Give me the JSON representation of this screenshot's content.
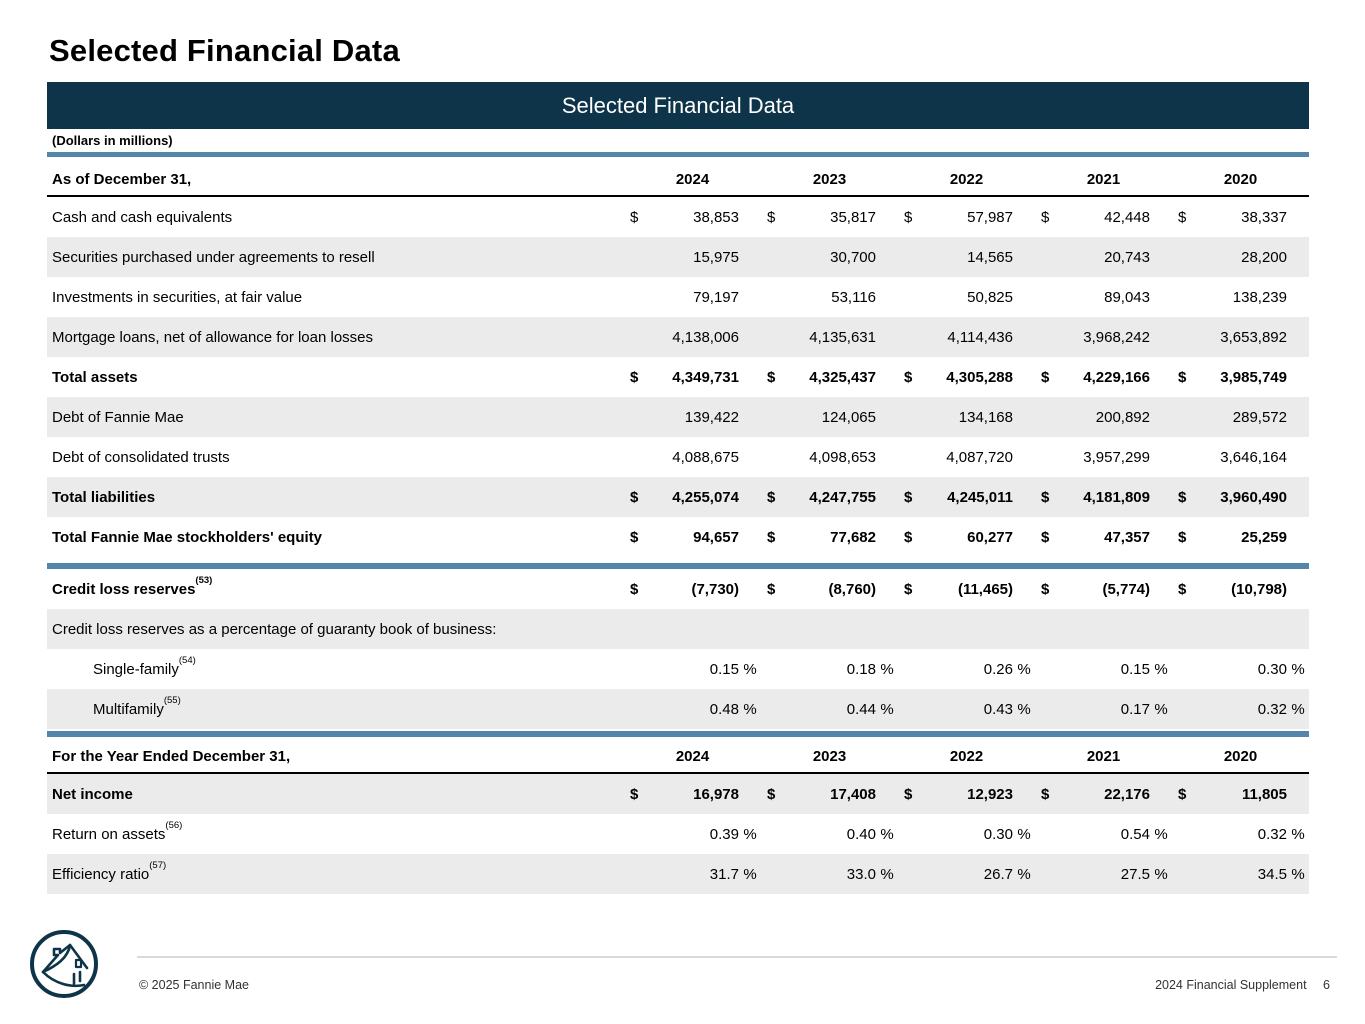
{
  "page": {
    "title": "Selected Financial Data",
    "table_title": "Selected Financial Data",
    "units_note": "(Dollars in millions)"
  },
  "colors": {
    "navy": "#0e3449",
    "steel_blue": "#5386a9",
    "row_shade": "#ebebeb",
    "footer_line": "#d9d9d9"
  },
  "table": {
    "years": [
      "2024",
      "2023",
      "2022",
      "2021",
      "2020"
    ],
    "blocks": [
      {
        "type": "header",
        "label": "As of December 31,"
      },
      {
        "type": "rows",
        "rows": [
          {
            "label": "Cash and cash equivalents",
            "dollar": true,
            "values": [
              "38,853",
              "35,817",
              "57,987",
              "42,448",
              "38,337"
            ]
          },
          {
            "label": "Securities purchased under agreements to resell",
            "shaded": true,
            "values": [
              "15,975",
              "30,700",
              "14,565",
              "20,743",
              "28,200"
            ]
          },
          {
            "label": "Investments in securities, at fair value",
            "values": [
              "79,197",
              "53,116",
              "50,825",
              "89,043",
              "138,239"
            ]
          },
          {
            "label": "Mortgage loans, net of allowance for loan losses",
            "shaded": true,
            "values": [
              "4,138,006",
              "4,135,631",
              "4,114,436",
              "3,968,242",
              "3,653,892"
            ]
          },
          {
            "label": "Total assets",
            "bold": true,
            "dollar": true,
            "values": [
              "4,349,731",
              "4,325,437",
              "4,305,288",
              "4,229,166",
              "3,985,749"
            ]
          },
          {
            "label": "Debt of Fannie Mae",
            "shaded": true,
            "values": [
              "139,422",
              "124,065",
              "134,168",
              "200,892",
              "289,572"
            ]
          },
          {
            "label": "Debt of consolidated trusts",
            "values": [
              "4,088,675",
              "4,098,653",
              "4,087,720",
              "3,957,299",
              "3,646,164"
            ]
          },
          {
            "label": "Total liabilities",
            "bold": true,
            "shaded": true,
            "dollar": true,
            "values": [
              "4,255,074",
              "4,247,755",
              "4,245,011",
              "4,181,809",
              "3,960,490"
            ]
          },
          {
            "label": "Total Fannie Mae stockholders' equity",
            "bold": true,
            "dollar": true,
            "values": [
              "94,657",
              "77,682",
              "60,277",
              "47,357",
              "25,259"
            ]
          }
        ]
      },
      {
        "type": "divider",
        "variant": 1
      },
      {
        "type": "rows",
        "rows": [
          {
            "label": "Credit loss reserves",
            "sup": "(53)",
            "bold": true,
            "dollar": true,
            "values": [
              "(7,730)",
              "(8,760)",
              "(11,465)",
              "(5,774)",
              "(10,798)"
            ]
          },
          {
            "label": "Credit loss reserves as a percentage of guaranty book of business:",
            "shaded": true,
            "span": true,
            "values": []
          },
          {
            "label": "Single-family",
            "sup": "(54)",
            "indent": true,
            "pct": true,
            "values": [
              "0.15",
              "0.18",
              "0.26",
              "0.15",
              "0.30"
            ]
          },
          {
            "label": "Multifamily",
            "sup": "(55)",
            "indent": true,
            "shaded": true,
            "pct": true,
            "values": [
              "0.48",
              "0.44",
              "0.43",
              "0.17",
              "0.32"
            ]
          }
        ]
      },
      {
        "type": "divider",
        "variant": 2
      },
      {
        "type": "header",
        "label": "For the Year Ended December 31,"
      },
      {
        "type": "rows",
        "rows": [
          {
            "label": "Net income",
            "bold": true,
            "shaded": true,
            "dollar": true,
            "values": [
              "16,978",
              "17,408",
              "12,923",
              "22,176",
              "11,805"
            ]
          },
          {
            "label": "Return on assets",
            "sup": "(56)",
            "pct": true,
            "values": [
              "0.39",
              "0.40",
              "0.30",
              "0.54",
              "0.32"
            ]
          },
          {
            "label": "Efficiency ratio",
            "sup": "(57)",
            "shaded": true,
            "pct": true,
            "values": [
              "31.7",
              "33.0",
              "26.7",
              "27.5",
              "34.5"
            ]
          }
        ]
      }
    ],
    "symbols": {
      "dollar": "$",
      "percent": "%"
    }
  },
  "footer": {
    "copyright": "© 2025 Fannie Mae",
    "doc_title": "2024 Financial Supplement",
    "page_number": "6",
    "logo_name": "fannie-mae-logo"
  }
}
